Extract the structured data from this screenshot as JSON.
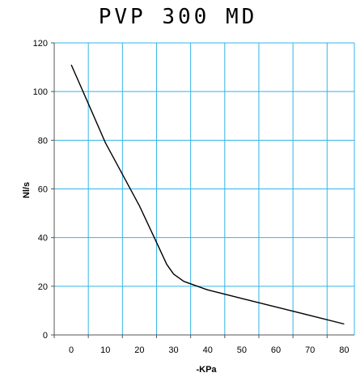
{
  "chart_data": {
    "type": "line",
    "title": "PVP 300 MD",
    "xlabel": "-KPa",
    "ylabel": "Nl/s",
    "xlim": [
      -5,
      83
    ],
    "ylim": [
      0,
      120
    ],
    "x_ticks": [
      0,
      10,
      20,
      30,
      40,
      50,
      60,
      70,
      80
    ],
    "y_ticks": [
      0,
      20,
      40,
      60,
      80,
      100,
      120
    ],
    "grid": true,
    "series": [
      {
        "x": [
          0,
          5,
          10,
          15,
          20,
          25,
          28,
          30,
          33,
          35,
          40,
          50,
          60,
          70,
          80
        ],
        "values": [
          111,
          95,
          79,
          66,
          53,
          38,
          29,
          25,
          22,
          21,
          18.5,
          15,
          11.5,
          8,
          4.5
        ]
      }
    ]
  },
  "colors": {
    "grid": "#33b5e5",
    "line": "#000000",
    "axis": "#555555"
  }
}
